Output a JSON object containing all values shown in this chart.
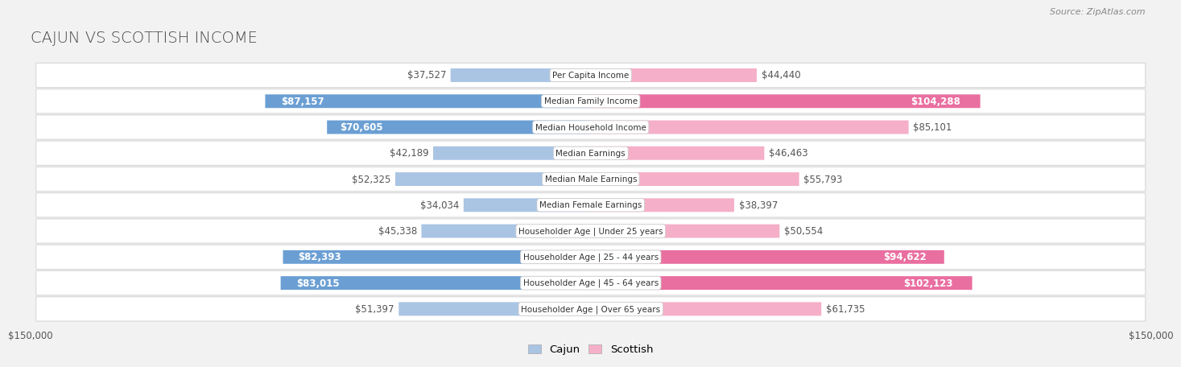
{
  "title": "CAJUN VS SCOTTISH INCOME",
  "source": "Source: ZipAtlas.com",
  "categories": [
    "Per Capita Income",
    "Median Family Income",
    "Median Household Income",
    "Median Earnings",
    "Median Male Earnings",
    "Median Female Earnings",
    "Householder Age | Under 25 years",
    "Householder Age | 25 - 44 years",
    "Householder Age | 45 - 64 years",
    "Householder Age | Over 65 years"
  ],
  "cajun_values": [
    37527,
    87157,
    70605,
    42189,
    52325,
    34034,
    45338,
    82393,
    83015,
    51397
  ],
  "scottish_values": [
    44440,
    104288,
    85101,
    46463,
    55793,
    38397,
    50554,
    94622,
    102123,
    61735
  ],
  "cajun_labels": [
    "$37,527",
    "$87,157",
    "$70,605",
    "$42,189",
    "$52,325",
    "$34,034",
    "$45,338",
    "$82,393",
    "$83,015",
    "$51,397"
  ],
  "scottish_labels": [
    "$44,440",
    "$104,288",
    "$85,101",
    "$46,463",
    "$55,793",
    "$38,397",
    "$50,554",
    "$94,622",
    "$102,123",
    "$61,735"
  ],
  "cajun_color_light": "#aac4e4",
  "cajun_color_dark": "#6b9fd4",
  "scottish_color_light": "#f5afc8",
  "scottish_color_dark": "#e96fa0",
  "cajun_dark_indices": [
    1,
    2,
    7,
    8
  ],
  "scottish_dark_indices": [
    1,
    7,
    8
  ],
  "x_max": 150000,
  "background_color": "#f2f2f2",
  "row_facecolor": "#ffffff",
  "row_edgecolor": "#d8d8d8",
  "label_inside_color": "#ffffff",
  "label_outside_color": "#555555",
  "title_fontsize": 14,
  "bar_label_fontsize": 8.5,
  "cat_label_fontsize": 7.5,
  "axis_label_fontsize": 8.5,
  "legend_fontsize": 9.5
}
